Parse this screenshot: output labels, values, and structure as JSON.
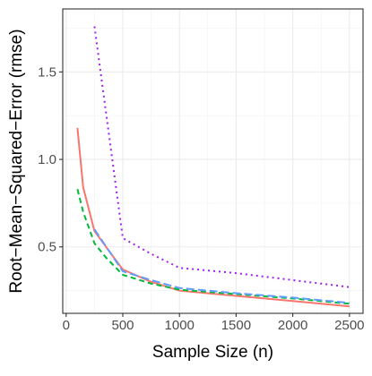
{
  "chart_data": {
    "type": "line",
    "xlabel": "Sample Size (n)",
    "ylabel": "Root−Mean−Squared−Error (rmse)",
    "xlim": [
      -30,
      2620
    ],
    "ylim": [
      0.12,
      1.86
    ],
    "xticks": [
      0,
      500,
      1000,
      1500,
      2000,
      2500
    ],
    "xtick_labels": [
      "0",
      "500",
      "1000",
      "1500",
      "2000",
      "2500"
    ],
    "yticks": [
      0.5,
      1.0,
      1.5
    ],
    "ytick_labels": [
      "0.5",
      "1.0",
      "1.5"
    ],
    "grid": true,
    "legend": "none",
    "series": [
      {
        "color": "#F8766D",
        "dash": "solid",
        "x": [
          100,
          150,
          250,
          500,
          750,
          1000,
          1500,
          2000,
          2500
        ],
        "y": [
          1.18,
          0.84,
          0.59,
          0.37,
          0.3,
          0.25,
          0.22,
          0.19,
          0.16
        ]
      },
      {
        "color": "#00BA38",
        "dash": "dashed",
        "x": [
          100,
          150,
          250,
          350,
          500,
          750,
          1000,
          1500,
          2000,
          2500
        ],
        "y": [
          0.83,
          0.7,
          0.52,
          0.44,
          0.34,
          0.29,
          0.255,
          0.23,
          0.205,
          0.175
        ]
      },
      {
        "color": "#619CFF",
        "dash": "longdash",
        "x": [
          250,
          500,
          750,
          1000,
          1500,
          2000,
          2500
        ],
        "y": [
          0.6,
          0.36,
          0.31,
          0.265,
          0.235,
          0.21,
          0.18
        ]
      },
      {
        "color": "#A020F0",
        "dash": "dotted",
        "x": [
          250,
          500,
          750,
          1000,
          1500,
          2000,
          2500
        ],
        "y": [
          1.76,
          0.55,
          0.46,
          0.38,
          0.35,
          0.31,
          0.27
        ]
      }
    ]
  }
}
